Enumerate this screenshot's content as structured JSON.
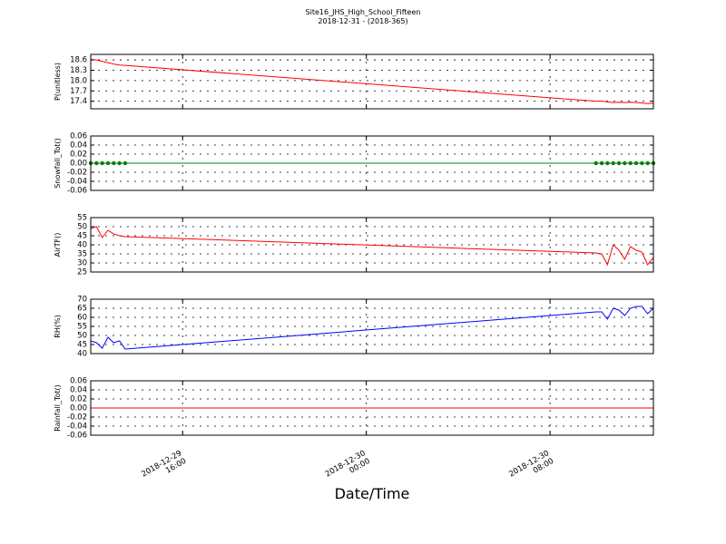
{
  "title": "Site16_JHS_High_School_Fifteen",
  "subtitle": "2018-12-31 - (2018-365)",
  "xlabel": "Date/Time",
  "x": [
    "2018-12-29 12:00",
    "2018-12-29 12:15",
    "2018-12-29 12:30",
    "2018-12-29 12:45",
    "2018-12-29 13:00",
    "2018-12-29 13:15",
    "2018-12-29 13:30",
    "2018-12-30 10:00",
    "2018-12-30 10:15",
    "2018-12-30 10:30",
    "2018-12-30 10:45",
    "2018-12-30 11:00",
    "2018-12-30 11:15",
    "2018-12-30 11:30",
    "2018-12-30 11:45",
    "2018-12-30 12:00",
    "2018-12-30 12:15",
    "2018-12-30 12:30"
  ],
  "xlim": [
    "2018-12-29 12:00",
    "2018-12-30 12:30"
  ],
  "xticks": [
    {
      "value": "2018-12-29 16:00",
      "label": "2018-12-29\n16:00"
    },
    {
      "value": "2018-12-30 00:00",
      "label": "2018-12-30\n00:00"
    },
    {
      "value": "2018-12-30 08:00",
      "label": "2018-12-30\n08:00"
    }
  ],
  "chart_data": [
    {
      "type": "line",
      "ylabel": "P(unitless)",
      "color": "#ff0000",
      "marker": false,
      "grid": true,
      "values": [
        18.62,
        18.6,
        18.56,
        18.52,
        18.48,
        18.45,
        18.44,
        17.4,
        17.4,
        17.38,
        17.36,
        17.37,
        17.36,
        17.37,
        17.36,
        17.35,
        17.33,
        17.34
      ],
      "ylim": [
        17.18,
        18.76
      ],
      "yticks": [
        17.4,
        17.7,
        {
          "value": 18.0,
          "label": "18.0"
        },
        18.3,
        18.6
      ]
    },
    {
      "type": "line",
      "ylabel": "Snowfall_Tot()",
      "color": "#008000",
      "marker": true,
      "grid": true,
      "values": [
        0,
        0,
        0,
        0,
        0,
        0,
        0,
        0,
        0,
        0,
        0,
        0,
        0,
        0,
        0,
        0,
        0,
        0
      ],
      "ylim": [
        -0.06,
        0.06
      ],
      "yticks": [
        -0.06,
        -0.04,
        -0.02,
        {
          "value": 0,
          "label": "0.00"
        },
        0.02,
        0.04,
        0.06
      ]
    },
    {
      "type": "line",
      "ylabel": "AirTF()",
      "color": "#ff0000",
      "marker": false,
      "grid": true,
      "values": [
        49,
        50,
        44,
        48,
        46,
        45,
        44.5,
        35.5,
        35,
        29,
        40,
        37,
        32,
        39,
        37,
        36,
        29,
        33
      ],
      "ylim": [
        25,
        55
      ],
      "yticks": [
        25,
        30,
        35,
        40,
        45,
        50,
        55
      ]
    },
    {
      "type": "line",
      "ylabel": "RH(%)",
      "color": "#0000ff",
      "marker": false,
      "grid": true,
      "values": [
        47,
        46,
        43,
        49,
        46,
        47,
        42.5,
        63,
        63,
        59,
        65,
        64,
        61,
        65,
        66,
        66,
        62,
        65
      ],
      "ylim": [
        40,
        70
      ],
      "yticks": [
        40,
        45,
        50,
        55,
        60,
        65,
        70
      ]
    },
    {
      "type": "line",
      "ylabel": "Rainfall_Tot()",
      "color": "#ff0000",
      "marker": false,
      "grid": true,
      "values": [
        0,
        0,
        0,
        0,
        0,
        0,
        0,
        0,
        0,
        0,
        0,
        0,
        0,
        0,
        0,
        0,
        0,
        0
      ],
      "ylim": [
        -0.06,
        0.06
      ],
      "yticks": [
        -0.06,
        -0.04,
        -0.02,
        {
          "value": 0,
          "label": "0.00"
        },
        0.02,
        0.04,
        0.06
      ]
    }
  ]
}
